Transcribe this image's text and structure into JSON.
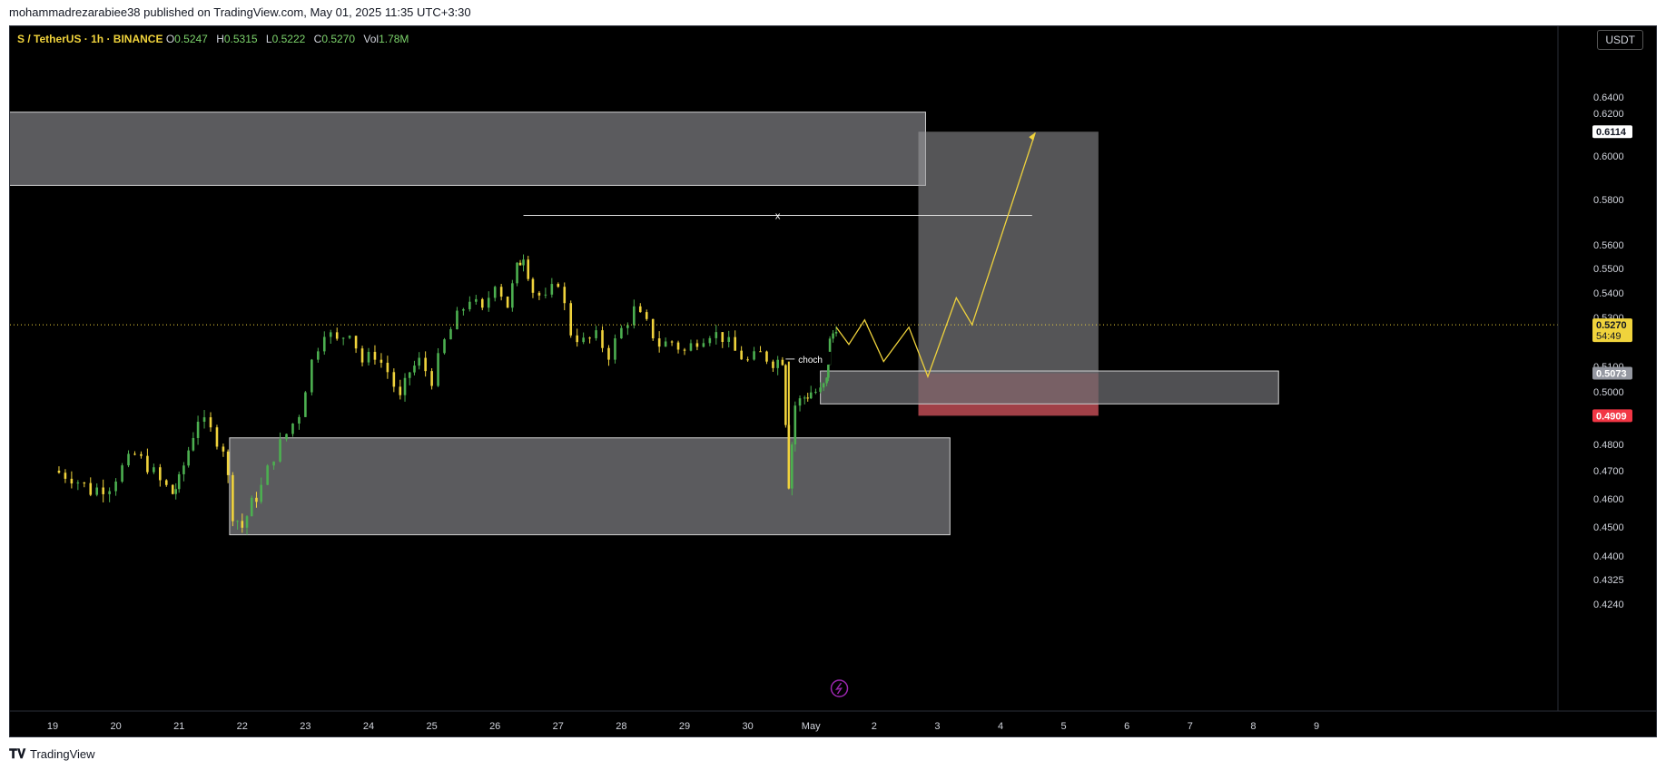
{
  "header": {
    "published": "mohammadrezarabiee38 published on TradingView.com, May 01, 2025 11:35 UTC+3:30"
  },
  "legend": {
    "symbol": "S / TetherUS · 1h · BINANCE",
    "open_label": "O",
    "open": "0.5247",
    "high_label": "H",
    "high": "0.5315",
    "low_label": "L",
    "low": "0.5222",
    "close_label": "C",
    "close": "0.5270",
    "vol_label": "Vol",
    "vol": "1.78M"
  },
  "unit_button": "USDT",
  "footer": {
    "brand": "TradingView"
  },
  "annotations": {
    "choch": "choch",
    "x_mark": "x"
  },
  "colors": {
    "up": "#4caf50",
    "down": "#f0d33c",
    "zone": "#6b6b6f",
    "stop": "#b2474f",
    "path": "#f0d33c"
  },
  "chart_data": {
    "type": "candlestick",
    "symbol": "S / TetherUS",
    "interval": "1h",
    "exchange": "BINANCE",
    "y_ticks": [
      0.64,
      0.62,
      0.6,
      0.58,
      0.56,
      0.55,
      0.54,
      0.53,
      0.51,
      0.5,
      0.48,
      0.47,
      0.46,
      0.45,
      0.44,
      0.4325,
      0.424
    ],
    "y_tick_labels": [
      "0.6400",
      "0.6200",
      "0.6000",
      "0.5800",
      "0.5600",
      "0.5500",
      "0.5400",
      "0.5300",
      "0.5100",
      "0.5000",
      "0.4800",
      "0.4700",
      "0.4600",
      "0.4500",
      "0.4400",
      "0.4325",
      "0.4240"
    ],
    "x_labels": [
      "19",
      "20",
      "21",
      "22",
      "23",
      "24",
      "25",
      "26",
      "27",
      "28",
      "29",
      "30",
      "May",
      "2",
      "3",
      "4",
      "5",
      "6",
      "7",
      "8",
      "9"
    ],
    "price_path": [
      [
        19.0,
        0.47
      ],
      [
        19.3,
        0.468
      ],
      [
        19.6,
        0.463
      ],
      [
        19.9,
        0.465
      ],
      [
        20.1,
        0.471
      ],
      [
        20.3,
        0.476
      ],
      [
        20.5,
        0.472
      ],
      [
        20.7,
        0.466
      ],
      [
        20.9,
        0.462
      ],
      [
        21.0,
        0.466
      ],
      [
        21.15,
        0.478
      ],
      [
        21.3,
        0.49
      ],
      [
        21.5,
        0.485
      ],
      [
        21.7,
        0.479
      ],
      [
        21.85,
        0.455
      ],
      [
        22.0,
        0.45
      ],
      [
        22.15,
        0.458
      ],
      [
        22.3,
        0.464
      ],
      [
        22.5,
        0.476
      ],
      [
        22.7,
        0.484
      ],
      [
        22.9,
        0.492
      ],
      [
        23.1,
        0.512
      ],
      [
        23.3,
        0.525
      ],
      [
        23.5,
        0.52
      ],
      [
        23.7,
        0.525
      ],
      [
        23.9,
        0.512
      ],
      [
        24.1,
        0.515
      ],
      [
        24.3,
        0.508
      ],
      [
        24.5,
        0.497
      ],
      [
        24.65,
        0.508
      ],
      [
        24.8,
        0.512
      ],
      [
        25.0,
        0.505
      ],
      [
        25.2,
        0.52
      ],
      [
        25.4,
        0.53
      ],
      [
        25.6,
        0.538
      ],
      [
        25.8,
        0.532
      ],
      [
        26.0,
        0.545
      ],
      [
        26.2,
        0.535
      ],
      [
        26.35,
        0.55
      ],
      [
        26.45,
        0.556
      ],
      [
        26.6,
        0.541
      ],
      [
        26.8,
        0.537
      ],
      [
        27.0,
        0.545
      ],
      [
        27.2,
        0.524
      ],
      [
        27.4,
        0.52
      ],
      [
        27.6,
        0.522
      ],
      [
        27.8,
        0.515
      ],
      [
        28.0,
        0.525
      ],
      [
        28.2,
        0.533
      ],
      [
        28.4,
        0.527
      ],
      [
        28.6,
        0.519
      ],
      [
        28.8,
        0.52
      ],
      [
        29.0,
        0.516
      ],
      [
        29.2,
        0.521
      ],
      [
        29.4,
        0.524
      ],
      [
        29.6,
        0.522
      ],
      [
        29.8,
        0.516
      ],
      [
        30.0,
        0.512
      ],
      [
        30.2,
        0.515
      ],
      [
        30.4,
        0.512
      ],
      [
        30.55,
        0.513
      ],
      [
        30.65,
        0.466
      ],
      [
        30.75,
        0.495
      ],
      [
        30.9,
        0.498
      ],
      [
        31.0,
        0.5
      ],
      [
        31.15,
        0.5
      ],
      [
        31.25,
        0.504
      ],
      [
        31.3,
        0.52
      ],
      [
        31.4,
        0.527
      ]
    ],
    "supply_zone_upper": [
      0.5865,
      0.6215
    ],
    "demand_zone_lower": [
      0.4473,
      0.4825
    ],
    "entry_zone": [
      0.4954,
      0.5082
    ],
    "target_price": "0.6114",
    "stop_price": "0.4909",
    "entry_price": "0.5073",
    "last_price": "0.5270",
    "countdown": "54:49",
    "x_level_price": 0.573,
    "choch_price": 0.513,
    "projection_path": [
      [
        31.4,
        0.526
      ],
      [
        31.6,
        0.519
      ],
      [
        31.85,
        0.529
      ],
      [
        32.15,
        0.512
      ],
      [
        32.55,
        0.526
      ],
      [
        32.85,
        0.506
      ],
      [
        33.3,
        0.538
      ],
      [
        33.55,
        0.527
      ],
      [
        34.55,
        0.611
      ]
    ]
  }
}
